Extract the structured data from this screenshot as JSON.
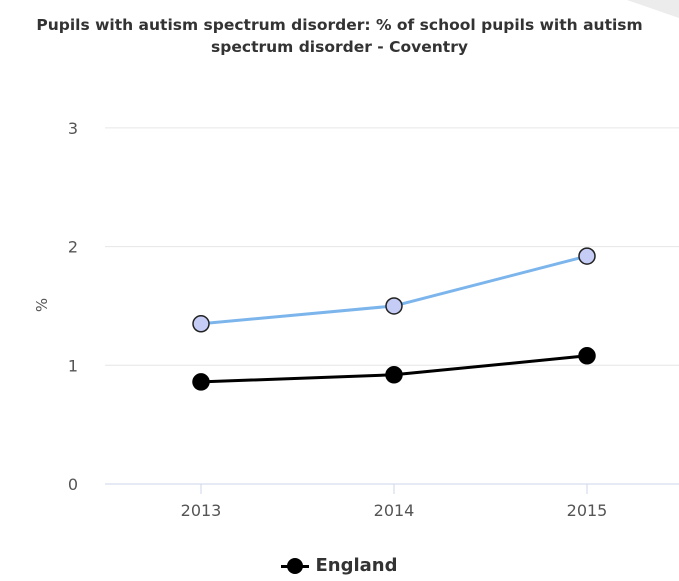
{
  "chart_data": {
    "type": "line",
    "title_line1": "Pupils with autism spectrum disorder: % of school pupils with autism",
    "title_line2": "spectrum disorder - Coventry",
    "xlabel": "",
    "ylabel": "%",
    "x": [
      "2013",
      "2014",
      "2015"
    ],
    "ylim": [
      0,
      3
    ],
    "yticks": [
      "0",
      "1",
      "2",
      "3"
    ],
    "grid": true,
    "legend_position": "bottom-center",
    "series": [
      {
        "name": "",
        "values": [
          1.35,
          1.5,
          1.92
        ],
        "line_color": "#7cb5ec",
        "marker_fill": "#c5cdf7",
        "marker_stroke": "#222222"
      },
      {
        "name": "England",
        "values": [
          0.86,
          0.92,
          1.08
        ],
        "line_color": "#000000",
        "marker_fill": "#000000",
        "marker_stroke": "#000000"
      }
    ]
  },
  "legend": {
    "label": "England"
  }
}
